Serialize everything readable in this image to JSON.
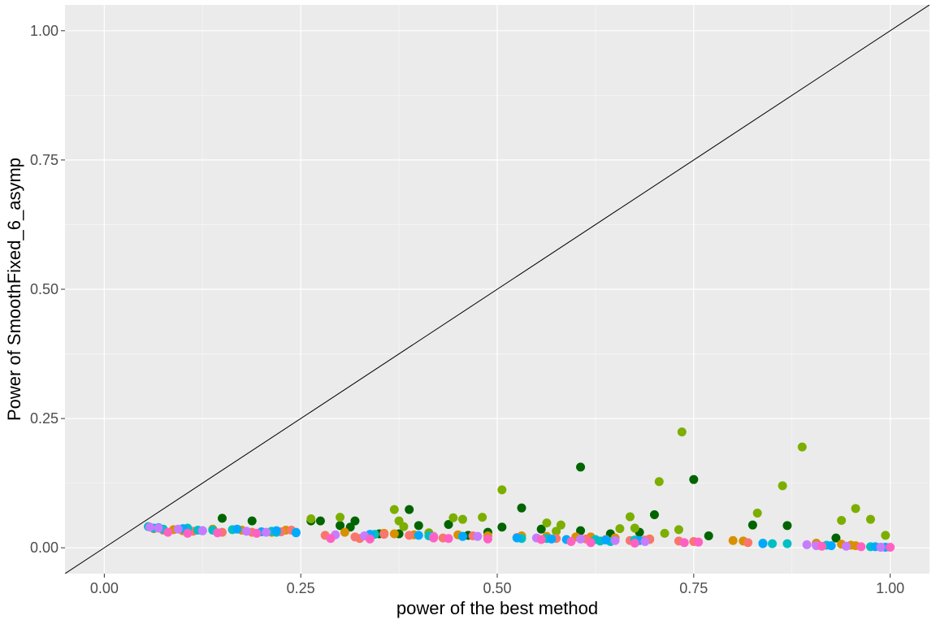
{
  "chart_data": {
    "type": "scatter",
    "title": "",
    "xlabel": "power of the best method",
    "ylabel": "Power of SmoothFixed_6_asymp",
    "xlim": [
      -0.05,
      1.05
    ],
    "ylim": [
      -0.05,
      1.05
    ],
    "x_ticks": [
      "0.00",
      "0.25",
      "0.50",
      "0.75",
      "1.00"
    ],
    "y_ticks": [
      "0.00",
      "0.25",
      "0.50",
      "0.75",
      "1.00"
    ],
    "x_tick_values": [
      0,
      0.25,
      0.5,
      0.75,
      1
    ],
    "y_tick_values": [
      0,
      0.25,
      0.5,
      0.75,
      1
    ],
    "grid": true,
    "legend": "none",
    "reference_line": {
      "slope": 1,
      "intercept": 0,
      "color": "#000000"
    },
    "colors": {
      "background": "#ebebeb",
      "grid_major": "#ffffff",
      "grid_minor": "#f5f5f5"
    },
    "series": [
      {
        "color": "#006400",
        "points": [
          [
            0.15,
            0.057
          ],
          [
            0.188,
            0.052
          ],
          [
            0.263,
            0.052
          ],
          [
            0.275,
            0.052
          ],
          [
            0.3,
            0.043
          ],
          [
            0.313,
            0.04
          ],
          [
            0.319,
            0.052
          ],
          [
            0.35,
            0.027
          ],
          [
            0.375,
            0.027
          ],
          [
            0.388,
            0.074
          ],
          [
            0.4,
            0.043
          ],
          [
            0.438,
            0.045
          ],
          [
            0.463,
            0.024
          ],
          [
            0.488,
            0.03
          ],
          [
            0.506,
            0.04
          ],
          [
            0.531,
            0.077
          ],
          [
            0.556,
            0.036
          ],
          [
            0.606,
            0.156
          ],
          [
            0.606,
            0.033
          ],
          [
            0.644,
            0.027
          ],
          [
            0.681,
            0.03
          ],
          [
            0.7,
            0.064
          ],
          [
            0.75,
            0.132
          ],
          [
            0.769,
            0.023
          ],
          [
            0.825,
            0.044
          ],
          [
            0.869,
            0.043
          ],
          [
            0.931,
            0.019
          ]
        ]
      },
      {
        "color": "#7cae00",
        "points": [
          [
            0.263,
            0.056
          ],
          [
            0.3,
            0.059
          ],
          [
            0.369,
            0.074
          ],
          [
            0.375,
            0.052
          ],
          [
            0.381,
            0.041
          ],
          [
            0.413,
            0.029
          ],
          [
            0.444,
            0.058
          ],
          [
            0.456,
            0.055
          ],
          [
            0.481,
            0.059
          ],
          [
            0.506,
            0.112
          ],
          [
            0.563,
            0.048
          ],
          [
            0.575,
            0.032
          ],
          [
            0.581,
            0.044
          ],
          [
            0.656,
            0.037
          ],
          [
            0.669,
            0.06
          ],
          [
            0.675,
            0.038
          ],
          [
            0.706,
            0.128
          ],
          [
            0.713,
            0.028
          ],
          [
            0.731,
            0.035
          ],
          [
            0.735,
            0.224
          ],
          [
            0.831,
            0.067
          ],
          [
            0.863,
            0.12
          ],
          [
            0.888,
            0.195
          ],
          [
            0.938,
            0.053
          ],
          [
            0.956,
            0.076
          ],
          [
            0.975,
            0.055
          ],
          [
            0.994,
            0.024
          ]
        ]
      },
      {
        "color": "#d89000",
        "points": [
          [
            0.063,
            0.037
          ],
          [
            0.088,
            0.035
          ],
          [
            0.1,
            0.033
          ],
          [
            0.138,
            0.036
          ],
          [
            0.175,
            0.034
          ],
          [
            0.213,
            0.03
          ],
          [
            0.231,
            0.034
          ],
          [
            0.306,
            0.03
          ],
          [
            0.356,
            0.028
          ],
          [
            0.369,
            0.027
          ],
          [
            0.394,
            0.025
          ],
          [
            0.45,
            0.025
          ],
          [
            0.488,
            0.023
          ],
          [
            0.531,
            0.023
          ],
          [
            0.563,
            0.022
          ],
          [
            0.6,
            0.021
          ],
          [
            0.619,
            0.021
          ],
          [
            0.65,
            0.019
          ],
          [
            0.694,
            0.017
          ],
          [
            0.8,
            0.014
          ],
          [
            0.813,
            0.013
          ],
          [
            0.906,
            0.009
          ],
          [
            0.938,
            0.007
          ],
          [
            0.95,
            0.005
          ],
          [
            0.956,
            0.004
          ]
        ]
      },
      {
        "color": "#f8766d",
        "points": [
          [
            0.075,
            0.034
          ],
          [
            0.113,
            0.032
          ],
          [
            0.15,
            0.03
          ],
          [
            0.188,
            0.03
          ],
          [
            0.225,
            0.031
          ],
          [
            0.238,
            0.034
          ],
          [
            0.281,
            0.024
          ],
          [
            0.319,
            0.021
          ],
          [
            0.325,
            0.018
          ],
          [
            0.356,
            0.026
          ],
          [
            0.388,
            0.024
          ],
          [
            0.419,
            0.022
          ],
          [
            0.431,
            0.019
          ],
          [
            0.469,
            0.023
          ],
          [
            0.525,
            0.02
          ],
          [
            0.575,
            0.018
          ],
          [
            0.613,
            0.017
          ],
          [
            0.638,
            0.016
          ],
          [
            0.669,
            0.014
          ],
          [
            0.688,
            0.015
          ],
          [
            0.694,
            0.016
          ],
          [
            0.731,
            0.013
          ],
          [
            0.75,
            0.012
          ],
          [
            0.819,
            0.01
          ],
          [
            0.906,
            0.005
          ]
        ]
      },
      {
        "color": "#00bfc4",
        "points": [
          [
            0.056,
            0.041
          ],
          [
            0.063,
            0.038
          ],
          [
            0.075,
            0.036
          ],
          [
            0.106,
            0.038
          ],
          [
            0.119,
            0.034
          ],
          [
            0.138,
            0.034
          ],
          [
            0.163,
            0.035
          ],
          [
            0.213,
            0.032
          ],
          [
            0.219,
            0.03
          ],
          [
            0.244,
            0.03
          ],
          [
            0.344,
            0.026
          ],
          [
            0.413,
            0.023
          ],
          [
            0.456,
            0.022
          ],
          [
            0.531,
            0.018
          ],
          [
            0.563,
            0.018
          ],
          [
            0.625,
            0.016
          ],
          [
            0.631,
            0.013
          ],
          [
            0.644,
            0.012
          ],
          [
            0.675,
            0.015
          ],
          [
            0.838,
            0.009
          ],
          [
            0.85,
            0.008
          ],
          [
            0.869,
            0.008
          ],
          [
            0.919,
            0.005
          ],
          [
            0.975,
            0.002
          ],
          [
            0.988,
            0.001
          ]
        ]
      },
      {
        "color": "#00a9ff",
        "points": [
          [
            0.069,
            0.039
          ],
          [
            0.1,
            0.037
          ],
          [
            0.125,
            0.033
          ],
          [
            0.169,
            0.036
          ],
          [
            0.2,
            0.031
          ],
          [
            0.219,
            0.033
          ],
          [
            0.244,
            0.029
          ],
          [
            0.338,
            0.026
          ],
          [
            0.4,
            0.024
          ],
          [
            0.456,
            0.022
          ],
          [
            0.525,
            0.019
          ],
          [
            0.569,
            0.017
          ],
          [
            0.588,
            0.016
          ],
          [
            0.638,
            0.015
          ],
          [
            0.681,
            0.014
          ],
          [
            0.838,
            0.008
          ],
          [
            0.925,
            0.004
          ],
          [
            0.981,
            0.002
          ],
          [
            0.994,
            0.001
          ]
        ]
      },
      {
        "color": "#c77cff",
        "points": [
          [
            0.058,
            0.04
          ],
          [
            0.069,
            0.038
          ],
          [
            0.094,
            0.036
          ],
          [
            0.125,
            0.033
          ],
          [
            0.181,
            0.032
          ],
          [
            0.206,
            0.03
          ],
          [
            0.294,
            0.025
          ],
          [
            0.331,
            0.023
          ],
          [
            0.419,
            0.021
          ],
          [
            0.475,
            0.022
          ],
          [
            0.55,
            0.019
          ],
          [
            0.606,
            0.017
          ],
          [
            0.65,
            0.014
          ],
          [
            0.688,
            0.012
          ],
          [
            0.894,
            0.006
          ],
          [
            0.906,
            0.004
          ],
          [
            0.944,
            0.003
          ],
          [
            0.988,
            0.001
          ]
        ]
      },
      {
        "color": "#ff61c3",
        "points": [
          [
            0.081,
            0.03
          ],
          [
            0.106,
            0.028
          ],
          [
            0.144,
            0.029
          ],
          [
            0.194,
            0.028
          ],
          [
            0.288,
            0.018
          ],
          [
            0.338,
            0.017
          ],
          [
            0.419,
            0.019
          ],
          [
            0.438,
            0.018
          ],
          [
            0.488,
            0.017
          ],
          [
            0.556,
            0.016
          ],
          [
            0.594,
            0.012
          ],
          [
            0.619,
            0.01
          ],
          [
            0.675,
            0.009
          ],
          [
            0.738,
            0.01
          ],
          [
            0.756,
            0.011
          ],
          [
            0.913,
            0.003
          ],
          [
            0.963,
            0.002
          ],
          [
            1.0,
            0.001
          ]
        ]
      }
    ]
  }
}
